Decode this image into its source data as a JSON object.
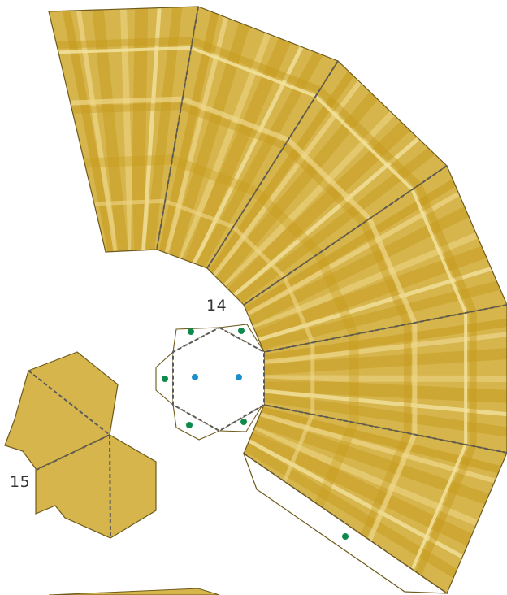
{
  "labels": {
    "piece_14": "14",
    "piece_15": "15"
  },
  "colors": {
    "base": "#d6b54c",
    "stripe_dark": "#c69a1c",
    "stripe_light": "#eed78b",
    "stripe_pale": "#f3e39f",
    "outline": "#6e5a1c",
    "fold_line": "#5b5b5b",
    "dot_green": "#0f8a4c",
    "dot_blue": "#1b8fcc"
  }
}
